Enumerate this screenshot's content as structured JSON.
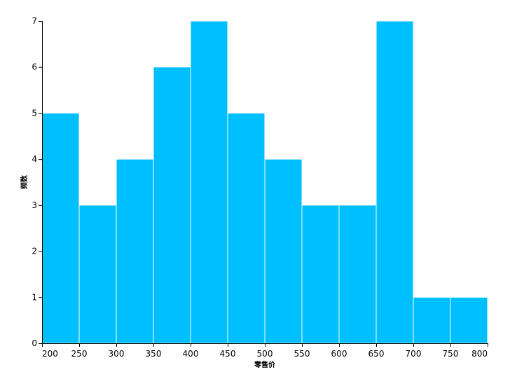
{
  "chart_data": {
    "type": "bar",
    "bins": [
      {
        "x0": 200,
        "x1": 250,
        "count": 5
      },
      {
        "x0": 250,
        "x1": 300,
        "count": 3
      },
      {
        "x0": 300,
        "x1": 350,
        "count": 4
      },
      {
        "x0": 350,
        "x1": 400,
        "count": 6
      },
      {
        "x0": 400,
        "x1": 450,
        "count": 7
      },
      {
        "x0": 450,
        "x1": 500,
        "count": 5
      },
      {
        "x0": 500,
        "x1": 550,
        "count": 4
      },
      {
        "x0": 550,
        "x1": 600,
        "count": 3
      },
      {
        "x0": 600,
        "x1": 650,
        "count": 3
      },
      {
        "x0": 650,
        "x1": 700,
        "count": 7
      },
      {
        "x0": 700,
        "x1": 750,
        "count": 1
      },
      {
        "x0": 750,
        "x1": 800,
        "count": 1
      }
    ],
    "x_ticks": [
      "200",
      "250",
      "300",
      "350",
      "400",
      "450",
      "500",
      "550",
      "600",
      "650",
      "700",
      "750",
      "800"
    ],
    "y_ticks": [
      "0",
      "1",
      "2",
      "3",
      "4",
      "5",
      "6",
      "7"
    ],
    "xlabel": "零售价",
    "ylabel": "频数",
    "xlim": [
      200,
      800
    ],
    "ylim": [
      0,
      7
    ],
    "grid": false,
    "bar_color": "#00bfff"
  }
}
